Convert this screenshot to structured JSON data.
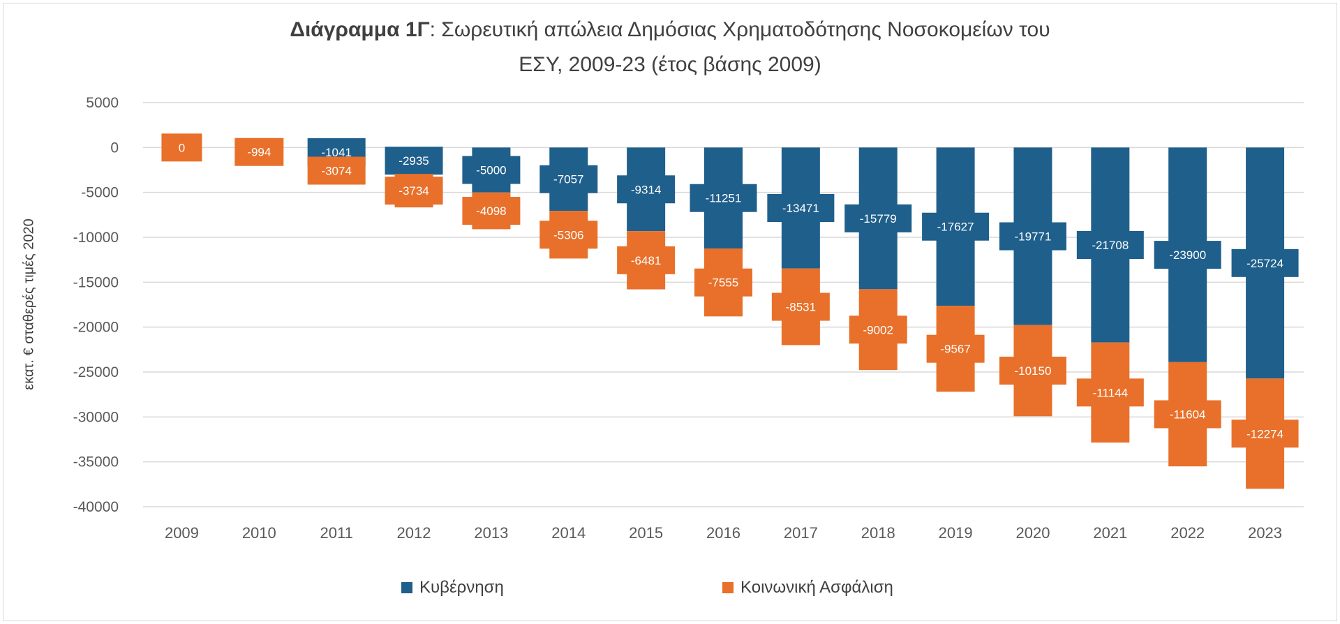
{
  "chart_data": {
    "type": "bar",
    "stacked": true,
    "title_bold": "Διάγραμμα 1Γ",
    "title_rest": ": Σωρευτική απώλεια Δημόσιας Χρηματοδότησης Νοσοκομείων του",
    "title_line2": "ΕΣΥ, 2009-23 (έτος βάσης 2009)",
    "xlabel": "",
    "ylabel": "εκατ. € σταθερές τιμές 2020",
    "ylim": [
      -40000,
      5000
    ],
    "yticks": [
      5000,
      0,
      -5000,
      -10000,
      -15000,
      -20000,
      -25000,
      -30000,
      -35000,
      -40000
    ],
    "grid": true,
    "legend_position": "bottom",
    "categories": [
      "2009",
      "2010",
      "2011",
      "2012",
      "2013",
      "2014",
      "2015",
      "2016",
      "2017",
      "2018",
      "2019",
      "2020",
      "2021",
      "2022",
      "2023"
    ],
    "series": [
      {
        "name": "Κυβέρνηση",
        "color": "#1f5f8b",
        "values": [
          0,
          300,
          -1041,
          -2935,
          -5000,
          -7057,
          -9314,
          -11251,
          -13471,
          -15779,
          -17627,
          -19771,
          -21708,
          -23900,
          -25724
        ]
      },
      {
        "name": "Κοινωνική Ασφάλιση",
        "color": "#e8702a",
        "values": [
          0,
          -994,
          -3074,
          -3734,
          -4098,
          -5306,
          -6481,
          -7555,
          -8531,
          -9002,
          -9567,
          -10150,
          -11144,
          -11604,
          -12274
        ]
      }
    ]
  }
}
